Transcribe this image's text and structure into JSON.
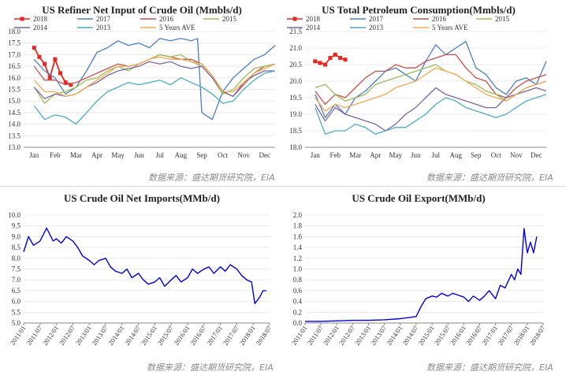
{
  "sources": [
    "数据来源：盛达期货研究院，EIA",
    "数据来源：盛达期货研究院，EIA",
    "数据来源：盛达期货研究院，EIA",
    "数据来源：盛达期货研究院，EIA"
  ],
  "chart_data": [
    {
      "type": "line",
      "title": "US Refiner Net Input of Crude Oil (Mmbls/d)",
      "xlabel": "",
      "ylabel": "",
      "categories": [
        "Jan",
        "Feb",
        "Mar",
        "Apr",
        "May",
        "Jun",
        "Jul",
        "Aug",
        "Sep",
        "Oct",
        "Nov",
        "Dec"
      ],
      "ylim": [
        13.0,
        18.0
      ],
      "yticks": [
        "13.0",
        "13.5",
        "14.0",
        "14.5",
        "15.0",
        "15.5",
        "16.0",
        "16.5",
        "17.0",
        "17.5",
        "18.0"
      ],
      "legend": [
        "2018",
        "2017",
        "2016",
        "2015",
        "2014",
        "2013",
        "5 Years AVE"
      ],
      "colors": {
        "2018": "#e8261d",
        "2017": "#4a7ec7",
        "2016": "#c9504a",
        "2015": "#9bbb59",
        "2014": "#8064a2",
        "2013": "#4bacc6",
        "5 Years AVE": "#f5a94f"
      },
      "series": [
        {
          "name": "2018",
          "x": [
            0,
            0.25,
            0.5,
            0.75,
            1.0,
            1.25,
            1.5,
            1.75
          ],
          "values": [
            17.3,
            16.9,
            16.6,
            16.0,
            16.8,
            16.2,
            15.8,
            15.7
          ]
        },
        {
          "name": "2017",
          "x": [
            0,
            0.5,
            1,
            1.5,
            2,
            2.5,
            3,
            3.5,
            4,
            4.5,
            5,
            5.5,
            6,
            6.5,
            7,
            7.5,
            7.8,
            8,
            8.5,
            9,
            9.5,
            10,
            10.5,
            11,
            11.5
          ],
          "values": [
            16.8,
            16.3,
            16.0,
            15.3,
            15.6,
            16.3,
            17.1,
            17.3,
            17.6,
            17.4,
            17.5,
            17.3,
            17.7,
            17.6,
            17.7,
            17.6,
            17.7,
            14.5,
            14.2,
            15.4,
            16.0,
            16.4,
            16.8,
            17.0,
            17.4
          ]
        },
        {
          "name": "2016",
          "x": [
            0,
            0.5,
            1,
            1.5,
            2,
            2.5,
            3,
            3.5,
            4,
            4.5,
            5,
            5.5,
            6,
            6.5,
            7,
            7.5,
            8,
            8.5,
            9,
            9.5,
            10,
            10.5,
            11,
            11.5
          ],
          "values": [
            16.5,
            15.9,
            15.9,
            15.7,
            15.8,
            16.0,
            16.2,
            16.4,
            16.6,
            16.5,
            16.6,
            16.8,
            17.0,
            16.9,
            16.8,
            16.8,
            16.6,
            16.1,
            15.4,
            15.2,
            15.7,
            16.2,
            16.5,
            16.6
          ]
        },
        {
          "name": "2015",
          "x": [
            0,
            0.5,
            1,
            1.5,
            2,
            2.5,
            3,
            3.5,
            4,
            4.5,
            5,
            5.5,
            6,
            6.5,
            7,
            7.5,
            8,
            8.5,
            9,
            9.5,
            10,
            10.5,
            11,
            11.5
          ],
          "values": [
            15.6,
            14.9,
            15.3,
            15.4,
            15.6,
            15.9,
            16.0,
            16.3,
            16.5,
            16.3,
            16.6,
            16.8,
            17.0,
            16.9,
            17.0,
            16.7,
            16.5,
            16.0,
            15.3,
            15.5,
            16.0,
            16.4,
            16.5,
            16.6
          ]
        },
        {
          "name": "2014",
          "x": [
            0,
            0.5,
            1,
            1.5,
            2,
            2.5,
            3,
            3.5,
            4,
            4.5,
            5,
            5.5,
            6,
            6.5,
            7,
            7.5,
            8,
            8.5,
            9,
            9.5,
            10,
            10.5,
            11,
            11.5
          ],
          "values": [
            15.6,
            15.1,
            15.3,
            15.2,
            15.3,
            15.6,
            15.8,
            16.1,
            16.3,
            16.4,
            16.5,
            16.7,
            16.6,
            16.7,
            16.5,
            16.4,
            16.5,
            16.0,
            15.4,
            15.2,
            15.8,
            16.1,
            16.3,
            16.3
          ]
        },
        {
          "name": "2013",
          "x": [
            0,
            0.5,
            1,
            1.5,
            2,
            2.5,
            3,
            3.5,
            4,
            4.5,
            5,
            5.5,
            6,
            6.5,
            7,
            7.5,
            8,
            8.5,
            9,
            9.5,
            10,
            10.5,
            11,
            11.5
          ],
          "values": [
            14.8,
            14.2,
            14.4,
            14.3,
            14.0,
            14.5,
            15.0,
            15.4,
            15.6,
            15.8,
            15.7,
            15.8,
            15.9,
            15.7,
            16.0,
            15.8,
            15.6,
            15.3,
            14.9,
            15.0,
            15.5,
            15.9,
            16.2,
            16.3
          ]
        },
        {
          "name": "5 Years AVE",
          "x": [
            0,
            0.5,
            1,
            1.5,
            2,
            2.5,
            3,
            3.5,
            4,
            4.5,
            5,
            5.5,
            6,
            6.5,
            7,
            7.5,
            8,
            8.5,
            9,
            9.5,
            10,
            10.5,
            11,
            11.5
          ],
          "values": [
            15.9,
            15.4,
            15.4,
            15.2,
            15.3,
            15.6,
            15.9,
            16.2,
            16.5,
            16.5,
            16.6,
            16.8,
            16.9,
            16.8,
            16.8,
            16.7,
            16.6,
            16.1,
            15.4,
            15.4,
            15.8,
            16.2,
            16.4,
            16.6
          ]
        }
      ]
    },
    {
      "type": "line",
      "title": "US Total Petroleum Consumption(Mmbls/d)",
      "xlabel": "",
      "ylabel": "",
      "categories": [
        "Jan",
        "Feb",
        "Mar",
        "Apr",
        "May",
        "Jun",
        "Jul",
        "Aug",
        "Sep",
        "Oct",
        "Nov",
        "Dec"
      ],
      "ylim": [
        18.0,
        21.5
      ],
      "yticks": [
        "18.0",
        "18.5",
        "19.0",
        "19.5",
        "20.0",
        "20.5",
        "21.0",
        "21.5"
      ],
      "legend": [
        "2018",
        "2017",
        "2016",
        "2015",
        "2014",
        "2013",
        "5 Years AVE"
      ],
      "colors": {
        "2018": "#e8261d",
        "2017": "#4a7ec7",
        "2016": "#c9504a",
        "2015": "#9bbb59",
        "2014": "#8064a2",
        "2013": "#4bacc6",
        "5 Years AVE": "#f5a94f"
      },
      "series": [
        {
          "name": "2018",
          "x": [
            0,
            0.25,
            0.5,
            0.75,
            1.0,
            1.25,
            1.5
          ],
          "values": [
            20.6,
            20.55,
            20.5,
            20.7,
            20.8,
            20.7,
            20.65
          ]
        },
        {
          "name": "2017",
          "x": [
            0,
            0.5,
            1,
            1.5,
            2,
            2.5,
            3,
            3.5,
            4,
            4.5,
            5,
            5.5,
            6,
            6.5,
            7,
            7.5,
            8,
            8.5,
            9,
            9.5,
            10,
            10.5,
            11,
            11.5
          ],
          "values": [
            19.6,
            18.9,
            19.3,
            19.0,
            19.5,
            19.7,
            20.0,
            20.3,
            20.4,
            20.2,
            20.0,
            20.6,
            21.1,
            20.8,
            21.0,
            21.2,
            20.4,
            20.2,
            19.8,
            19.6,
            20.0,
            20.1,
            19.9,
            20.6
          ]
        },
        {
          "name": "2016",
          "x": [
            0,
            0.5,
            1,
            1.5,
            2,
            2.5,
            3,
            3.5,
            4,
            4.5,
            5,
            5.5,
            6,
            6.5,
            7,
            7.5,
            8,
            8.5,
            9,
            9.5,
            10,
            10.5,
            11,
            11.5
          ],
          "values": [
            19.7,
            19.3,
            19.6,
            19.5,
            19.8,
            20.1,
            20.3,
            20.3,
            20.5,
            20.4,
            20.4,
            20.6,
            20.7,
            20.8,
            20.8,
            20.4,
            20.1,
            20.0,
            19.6,
            19.5,
            19.8,
            20.0,
            20.1,
            20.2
          ]
        },
        {
          "name": "2015",
          "x": [
            0,
            0.5,
            1,
            1.5,
            2,
            2.5,
            3,
            3.5,
            4,
            4.5,
            5,
            5.5,
            6,
            6.5,
            7,
            7.5,
            8,
            8.5,
            9,
            9.5,
            10,
            10.5,
            11,
            11.5
          ],
          "values": [
            19.8,
            19.9,
            19.6,
            19.4,
            19.5,
            19.6,
            19.9,
            20.0,
            20.1,
            20.2,
            20.3,
            20.4,
            20.5,
            20.3,
            20.2,
            20.0,
            19.9,
            19.7,
            19.6,
            19.4,
            19.6,
            19.8,
            19.9,
            20.0
          ]
        },
        {
          "name": "2014",
          "x": [
            0,
            0.5,
            1,
            1.5,
            2,
            2.5,
            3,
            3.5,
            4,
            4.5,
            5,
            5.5,
            6,
            6.5,
            7,
            7.5,
            8,
            8.5,
            9,
            9.5,
            10,
            10.5,
            11,
            11.5
          ],
          "values": [
            19.3,
            18.8,
            19.2,
            19.0,
            18.9,
            18.8,
            18.7,
            18.5,
            18.7,
            19.0,
            19.2,
            19.5,
            19.8,
            19.6,
            19.5,
            19.4,
            19.3,
            19.2,
            19.2,
            19.5,
            19.6,
            19.7,
            19.8,
            19.7
          ]
        },
        {
          "name": "2013",
          "x": [
            0,
            0.5,
            1,
            1.5,
            2,
            2.5,
            3,
            3.5,
            4,
            4.5,
            5,
            5.5,
            6,
            6.5,
            7,
            7.5,
            8,
            8.5,
            9,
            9.5,
            10,
            10.5,
            11,
            11.5
          ],
          "values": [
            19.2,
            18.4,
            18.5,
            18.5,
            18.7,
            18.6,
            18.4,
            18.5,
            18.6,
            18.6,
            18.8,
            19.0,
            19.3,
            19.5,
            19.4,
            19.2,
            19.1,
            19.0,
            18.9,
            19.0,
            19.2,
            19.4,
            19.5,
            19.6
          ]
        },
        {
          "name": "5 Years AVE",
          "x": [
            0,
            0.5,
            1,
            1.5,
            2,
            2.5,
            3,
            3.5,
            4,
            4.5,
            5,
            5.5,
            6,
            6.5,
            7,
            7.5,
            8,
            8.5,
            9,
            9.5,
            10,
            10.5,
            11,
            11.5
          ],
          "values": [
            19.5,
            19.1,
            19.3,
            19.2,
            19.3,
            19.4,
            19.5,
            19.6,
            19.8,
            19.9,
            20.0,
            20.2,
            20.4,
            20.3,
            20.2,
            20.0,
            19.8,
            19.6,
            19.5,
            19.4,
            19.6,
            19.8,
            19.9,
            20.0
          ]
        }
      ]
    },
    {
      "type": "line",
      "title": "US Crude Oil Net Imports(MMb/d)",
      "xlabel": "",
      "ylabel": "",
      "categories": [
        "2011/01",
        "2011/07",
        "2012/01",
        "2012/07",
        "2013/01",
        "2013/07",
        "2014/01",
        "2014/07",
        "2015/01",
        "2015/07",
        "2016/01",
        "2016/07",
        "2017/01",
        "2017/07",
        "2018/01",
        "2018/07"
      ],
      "ylim": [
        5.0,
        10.0
      ],
      "yticks": [
        "5.0",
        "5.5",
        "6.0",
        "6.5",
        "7.0",
        "7.5",
        "8.0",
        "8.5",
        "9.0",
        "9.5",
        "10.0"
      ],
      "color": "#0000e0",
      "series": [
        {
          "name": "",
          "x": [
            0,
            0.3,
            0.6,
            1,
            1.4,
            1.8,
            2,
            2.3,
            2.6,
            3,
            3.3,
            3.6,
            4,
            4.3,
            4.6,
            5,
            5.3,
            5.6,
            6,
            6.3,
            6.6,
            7,
            7.3,
            7.6,
            8,
            8.3,
            8.6,
            9,
            9.3,
            9.6,
            10,
            10.3,
            10.6,
            11,
            11.3,
            11.6,
            12,
            12.3,
            12.6,
            13,
            13.3,
            13.6,
            13.9,
            14.1,
            14.4,
            14.6,
            14.8
          ],
          "values": [
            8.3,
            9.0,
            8.6,
            8.8,
            9.4,
            8.8,
            8.9,
            8.7,
            9.0,
            8.8,
            8.5,
            8.1,
            7.9,
            7.7,
            7.9,
            8.0,
            7.6,
            7.4,
            7.3,
            7.5,
            7.1,
            7.3,
            7.0,
            6.8,
            6.9,
            7.1,
            6.7,
            7.0,
            7.2,
            6.9,
            7.1,
            7.5,
            7.3,
            7.5,
            7.6,
            7.3,
            7.6,
            7.4,
            7.7,
            7.5,
            7.2,
            7.0,
            6.9,
            5.9,
            6.2,
            6.5,
            6.5
          ]
        }
      ]
    },
    {
      "type": "line",
      "title": "US Crude Oil Export(MMb/d)",
      "xlabel": "",
      "ylabel": "",
      "categories": [
        "2011/01",
        "2011/07",
        "2012/01",
        "2012/07",
        "2013/01",
        "2013/07",
        "2014/01",
        "2014/07",
        "2015/01",
        "2015/07",
        "2016/01",
        "2016/07",
        "2017/01",
        "2017/07",
        "2018/01",
        "2018/07"
      ],
      "ylim": [
        0.0,
        2.0
      ],
      "yticks": [
        "0.0",
        "0.2",
        "0.4",
        "0.6",
        "0.8",
        "1.0",
        "1.2",
        "1.4",
        "1.6",
        "1.8",
        "2.0"
      ],
      "color": "#0000e0",
      "series": [
        {
          "name": "",
          "x": [
            0,
            1,
            2,
            3,
            4,
            5,
            6,
            6.5,
            7,
            7.3,
            7.6,
            8,
            8.3,
            8.6,
            9,
            9.3,
            9.6,
            10,
            10.3,
            10.6,
            11,
            11.3,
            11.6,
            12,
            12.3,
            12.6,
            13,
            13.2,
            13.4,
            13.6,
            13.8,
            14,
            14.2,
            14.4,
            14.6
          ],
          "values": [
            0.03,
            0.03,
            0.04,
            0.05,
            0.05,
            0.06,
            0.08,
            0.1,
            0.12,
            0.3,
            0.45,
            0.5,
            0.48,
            0.55,
            0.5,
            0.55,
            0.52,
            0.48,
            0.4,
            0.5,
            0.42,
            0.5,
            0.6,
            0.45,
            0.7,
            0.65,
            0.9,
            0.8,
            1.0,
            0.9,
            1.75,
            1.3,
            1.5,
            1.3,
            1.6
          ]
        }
      ]
    }
  ]
}
